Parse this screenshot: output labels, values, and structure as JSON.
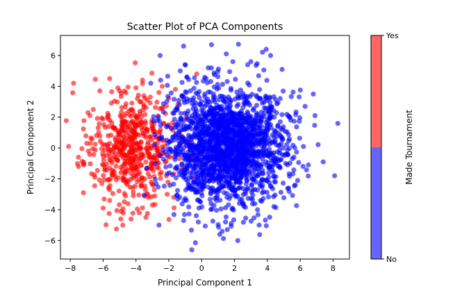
{
  "chart_data": {
    "type": "scatter",
    "title": "Scatter Plot of PCA Components",
    "xlabel": "Principal Component 1",
    "ylabel": "Principal Component 2",
    "xlim": [
      -8.6,
      9.0
    ],
    "ylim": [
      -7.2,
      7.3
    ],
    "xticks": [
      -8,
      -6,
      -4,
      -2,
      0,
      2,
      4,
      6,
      8
    ],
    "yticks": [
      -6,
      -4,
      -2,
      0,
      2,
      4,
      6
    ],
    "grid": false,
    "marker_alpha": 0.6,
    "series": [
      {
        "category": "Yes",
        "color": "#ff0000",
        "points": [
          [
            -7.8,
            4.2
          ],
          [
            -8.1,
            0.1
          ],
          [
            -7.5,
            -0.6
          ],
          [
            -7.2,
            -2.9
          ],
          [
            -7.5,
            -1.2
          ],
          [
            -7.0,
            0.3
          ],
          [
            -6.8,
            2.1
          ],
          [
            -6.6,
            2.5
          ],
          [
            -6.2,
            3.7
          ],
          [
            -5.6,
            4.5
          ],
          [
            -6.0,
            -3.9
          ],
          [
            -5.6,
            -3.4
          ],
          [
            -4.9,
            -4.1
          ],
          [
            -4.8,
            -5.0
          ],
          [
            -4.3,
            -4.6
          ],
          [
            -4.0,
            3.9
          ],
          [
            -3.6,
            4.4
          ],
          [
            -2.4,
            4.0
          ],
          [
            -1.6,
            3.8
          ],
          [
            -0.3,
            4.8
          ],
          [
            -3.0,
            -3.7
          ],
          [
            -2.1,
            -3.0
          ],
          [
            -1.7,
            -3.2
          ],
          [
            -6.4,
            0.8
          ],
          [
            -6.9,
            -0.2
          ],
          [
            -3.4,
            -4.5
          ],
          [
            -5.1,
            3.9
          ],
          [
            -6.5,
            -1.9
          ],
          [
            -3.8,
            -4.2
          ],
          [
            -2.6,
            3.6
          ]
        ],
        "core": {
          "cx": -4.4,
          "cy": 0.0,
          "sx": 1.35,
          "sy": 1.75,
          "count": 540
        }
      },
      {
        "category": "No",
        "color": "#0000ff",
        "points": [
          [
            0.6,
            6.7
          ],
          [
            1.5,
            6.1
          ],
          [
            1.9,
            5.6
          ],
          [
            4.2,
            6.0
          ],
          [
            2.8,
            5.4
          ],
          [
            3.0,
            5.6
          ],
          [
            4.9,
            5.1
          ],
          [
            -1.3,
            5.0
          ],
          [
            -1.0,
            5.4
          ],
          [
            0.4,
            5.2
          ],
          [
            8.1,
            -1.8
          ],
          [
            7.4,
            -0.9
          ],
          [
            6.8,
            3.5
          ],
          [
            6.9,
            2.1
          ],
          [
            6.2,
            0.1
          ],
          [
            6.5,
            -1.1
          ],
          [
            5.7,
            -2.4
          ],
          [
            -0.6,
            -6.6
          ],
          [
            1.1,
            -5.6
          ],
          [
            2.2,
            -6.0
          ],
          [
            3.5,
            -5.0
          ],
          [
            -2.6,
            -5.0
          ],
          [
            -0.2,
            -4.8
          ],
          [
            1.8,
            -4.9
          ],
          [
            -1.1,
            -4.7
          ],
          [
            -0.9,
            4.6
          ],
          [
            4.4,
            -3.8
          ],
          [
            5.3,
            -2.6
          ],
          [
            6.3,
            2.7
          ],
          [
            -3.1,
            4.2
          ],
          [
            -2.5,
            4.4
          ]
        ],
        "core": {
          "cx": 1.6,
          "cy": 0.1,
          "sx": 1.75,
          "sy": 1.85,
          "count": 1950
        }
      }
    ],
    "colorbar": {
      "label": "Made Tournament",
      "top_label": "Yes",
      "bottom_label": "No",
      "top_color": "#ff6666",
      "bottom_color": "#6666ff"
    }
  }
}
